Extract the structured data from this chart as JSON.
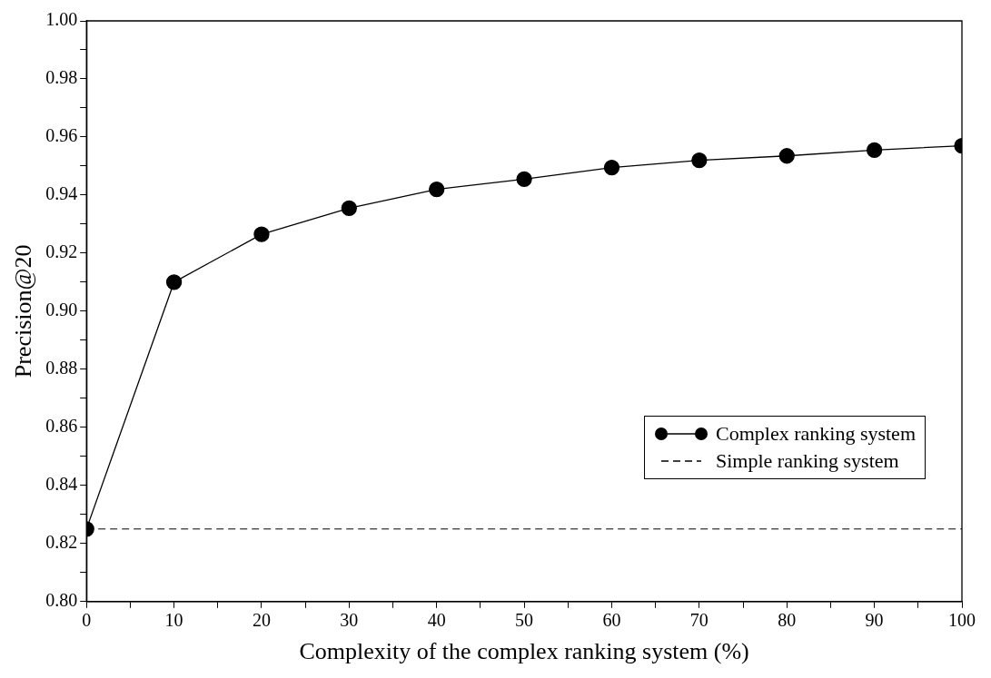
{
  "chart_data": {
    "type": "line",
    "xlabel": "Complexity of the complex ranking system (%)",
    "ylabel": "Precision@20",
    "x": [
      0,
      10,
      20,
      30,
      40,
      50,
      60,
      70,
      80,
      90,
      100
    ],
    "series": [
      {
        "name": "Complex ranking system",
        "color": "#000000",
        "values": [
          0.825,
          0.91,
          0.9265,
          0.9355,
          0.942,
          0.9455,
          0.9495,
          0.952,
          0.9535,
          0.9555,
          0.957
        ]
      }
    ],
    "ref_lines": [
      {
        "axis": "y",
        "value": 0.825,
        "label": "Simple ranking system",
        "color": "#000000",
        "line_style": "dashed"
      }
    ],
    "xlim": [
      0,
      100
    ],
    "xticks": [
      0,
      {
        "value": 5,
        "label": null
      },
      10,
      {
        "value": 15,
        "label": null
      },
      20,
      {
        "value": 25,
        "label": null
      },
      30,
      {
        "value": 35,
        "label": null
      },
      40,
      {
        "value": 45,
        "label": null
      },
      50,
      {
        "value": 55,
        "label": null
      },
      60,
      {
        "value": 65,
        "label": null
      },
      70,
      {
        "value": 75,
        "label": null
      },
      80,
      {
        "value": 85,
        "label": null
      },
      90,
      {
        "value": 95,
        "label": null
      },
      100
    ],
    "ylim": [
      0.8,
      1.0
    ],
    "yticks": [
      {
        "value": 0.8,
        "label": "0.80"
      },
      {
        "value": 0.81,
        "label": null
      },
      {
        "value": 0.82,
        "label": "0.82"
      },
      {
        "value": 0.83,
        "label": null
      },
      {
        "value": 0.84,
        "label": "0.84"
      },
      {
        "value": 0.85,
        "label": null
      },
      {
        "value": 0.86,
        "label": "0.86"
      },
      {
        "value": 0.87,
        "label": null
      },
      {
        "value": 0.88,
        "label": "0.88"
      },
      {
        "value": 0.89,
        "label": null
      },
      {
        "value": 0.9,
        "label": "0.90"
      },
      {
        "value": 0.91,
        "label": null
      },
      {
        "value": 0.92,
        "label": "0.92"
      },
      {
        "value": 0.93,
        "label": null
      },
      {
        "value": 0.94,
        "label": "0.94"
      },
      {
        "value": 0.95,
        "label": null
      },
      {
        "value": 0.96,
        "label": "0.96"
      },
      {
        "value": 0.97,
        "label": null
      },
      {
        "value": 0.98,
        "label": "0.98"
      },
      {
        "value": 0.99,
        "label": null
      },
      {
        "value": 1.0,
        "label": "1.00"
      }
    ],
    "grid": false,
    "legend": "bottom right",
    "marker": "circle",
    "line_style": "solid"
  }
}
